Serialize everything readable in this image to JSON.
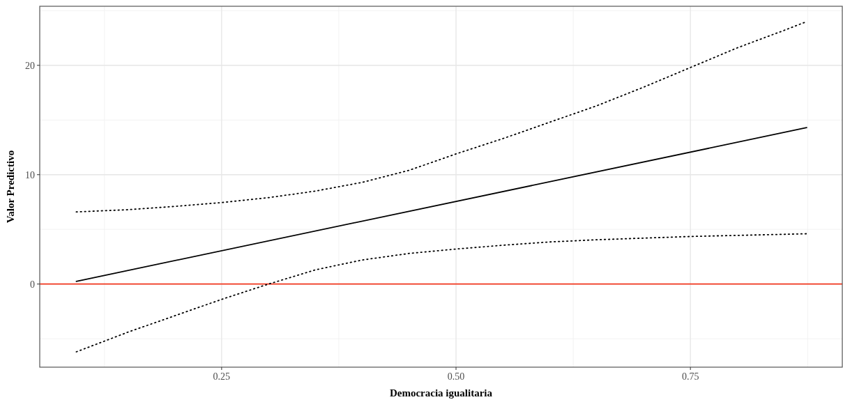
{
  "chart_data": {
    "type": "line",
    "xlabel": "Democracia igualitaria",
    "ylabel": "Valor Predictivo",
    "xlim": [
      0.056,
      0.912
    ],
    "ylim": [
      -7.6,
      25.4
    ],
    "xticks": [
      {
        "value": 0.25,
        "label": "0.25"
      },
      {
        "value": 0.5,
        "label": "0.50"
      },
      {
        "value": 0.75,
        "label": "0.75"
      }
    ],
    "yticks": [
      0,
      10,
      20
    ],
    "grid": true,
    "series": [
      {
        "color": "#000000",
        "line_style": "solid",
        "x": [
          0.095,
          0.874
        ],
        "values": [
          0.25,
          14.3
        ]
      },
      {
        "color": "#000000",
        "line_style": "dotted",
        "x": [
          0.095,
          0.15,
          0.2,
          0.25,
          0.3,
          0.35,
          0.4,
          0.45,
          0.5,
          0.55,
          0.6,
          0.65,
          0.7,
          0.75,
          0.8,
          0.85,
          0.874
        ],
        "values": [
          6.6,
          6.8,
          7.1,
          7.45,
          7.9,
          8.5,
          9.3,
          10.4,
          11.9,
          13.3,
          14.8,
          16.3,
          18.0,
          19.8,
          21.6,
          23.2,
          24.0
        ]
      },
      {
        "color": "#000000",
        "line_style": "dotted",
        "x": [
          0.095,
          0.15,
          0.2,
          0.25,
          0.3,
          0.35,
          0.4,
          0.45,
          0.5,
          0.55,
          0.6,
          0.65,
          0.7,
          0.75,
          0.8,
          0.85,
          0.874
        ],
        "values": [
          -6.2,
          -4.4,
          -2.9,
          -1.4,
          0.0,
          1.3,
          2.2,
          2.8,
          3.2,
          3.55,
          3.85,
          4.05,
          4.2,
          4.35,
          4.45,
          4.55,
          4.6
        ]
      }
    ],
    "ref_lines": [
      {
        "axis": "y",
        "value": 0,
        "color": "#f2361c",
        "line_style": "solid"
      }
    ]
  }
}
